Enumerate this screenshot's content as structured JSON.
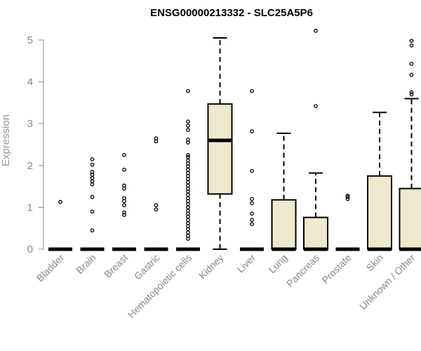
{
  "chart_data": {
    "type": "box",
    "title": "ENSG00000213332 - SLC25A5P6",
    "xlabel": "",
    "ylabel": "Expression",
    "ylim": [
      0,
      5
    ],
    "yticks": [
      0,
      1,
      2,
      3,
      4,
      5
    ],
    "colors": {
      "box_fill": "#EEE8CD",
      "stroke": "#000000",
      "axis": "#888888"
    },
    "categories": [
      "Bladder",
      "Brain",
      "Breast",
      "Gastric",
      "Hematopoietic cells",
      "Kidney",
      "Liver",
      "Lung",
      "Pancreas",
      "Prostate",
      "Skin",
      "Unknown / Other"
    ],
    "boxes": [
      {
        "category": "Bladder",
        "whisker_low": 0,
        "q1": 0,
        "median": 0,
        "q3": 0,
        "whisker_high": 0,
        "outliers": [
          1.13
        ]
      },
      {
        "category": "Brain",
        "whisker_low": 0,
        "q1": 0,
        "median": 0,
        "q3": 0,
        "whisker_high": 0,
        "outliers": [
          0.45,
          0.9,
          1.25,
          1.55,
          1.62,
          1.7,
          1.78,
          1.85,
          2.02,
          2.15
        ]
      },
      {
        "category": "Breast",
        "whisker_low": 0,
        "q1": 0,
        "median": 0,
        "q3": 0,
        "whisker_high": 0,
        "outliers": [
          0.82,
          0.88,
          1.05,
          1.15,
          1.22,
          1.45,
          1.52,
          1.9,
          2.25
        ]
      },
      {
        "category": "Gastric",
        "whisker_low": 0,
        "q1": 0,
        "median": 0,
        "q3": 0,
        "whisker_high": 0,
        "outliers": [
          0.95,
          1.05,
          2.58,
          2.65
        ]
      },
      {
        "category": "Hematopoietic cells",
        "whisker_low": 0,
        "q1": 0,
        "median": 0,
        "q3": 0,
        "whisker_high": 0,
        "outliers": [
          0.25,
          0.32,
          0.4,
          0.48,
          0.55,
          0.62,
          0.7,
          0.78,
          0.85,
          0.92,
          1.0,
          1.08,
          1.15,
          1.22,
          1.3,
          1.38,
          1.45,
          1.52,
          1.6,
          1.68,
          1.75,
          1.82,
          1.9,
          1.98,
          2.05,
          2.12,
          2.2,
          2.25,
          2.55,
          2.62,
          2.85,
          2.95,
          3.05,
          3.78
        ]
      },
      {
        "category": "Kidney",
        "whisker_low": 0,
        "q1": 1.32,
        "median": 2.6,
        "q3": 3.47,
        "whisker_high": 5.05,
        "outliers": []
      },
      {
        "category": "Liver",
        "whisker_low": 0,
        "q1": 0,
        "median": 0,
        "q3": 0,
        "whisker_high": 0,
        "outliers": [
          0.6,
          0.7,
          0.85,
          1.1,
          1.2,
          1.87,
          2.82,
          3.78
        ]
      },
      {
        "category": "Lung",
        "whisker_low": 0,
        "q1": 0,
        "median": 0,
        "q3": 1.18,
        "whisker_high": 2.77,
        "outliers": []
      },
      {
        "category": "Pancreas",
        "whisker_low": 0,
        "q1": 0,
        "median": 0,
        "q3": 0.76,
        "whisker_high": 1.82,
        "outliers": [
          3.42,
          5.22
        ]
      },
      {
        "category": "Prostate",
        "whisker_low": 0,
        "q1": 0,
        "median": 0,
        "q3": 0,
        "whisker_high": 0,
        "outliers": [
          1.2,
          1.25,
          1.28
        ]
      },
      {
        "category": "Skin",
        "whisker_low": 0,
        "q1": 0,
        "median": 0,
        "q3": 1.75,
        "whisker_high": 3.27,
        "outliers": []
      },
      {
        "category": "Unknown / Other",
        "whisker_low": 0,
        "q1": 0,
        "median": 0,
        "q3": 1.45,
        "whisker_high": 3.6,
        "outliers": [
          3.7,
          3.75,
          4.17,
          4.43,
          4.87,
          4.98
        ]
      }
    ]
  }
}
